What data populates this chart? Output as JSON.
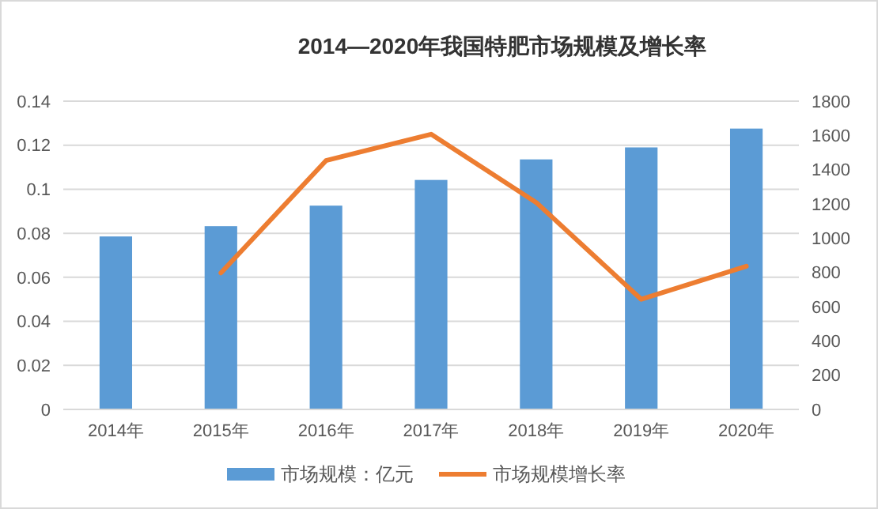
{
  "chart_data": {
    "type": "bar",
    "title": "2014—2020年我国特肥市场规模及增长率",
    "categories": [
      "2014年",
      "2015年",
      "2016年",
      "2017年",
      "2018年",
      "2019年",
      "2020年"
    ],
    "series": [
      {
        "name": "市场规模：亿元",
        "axis": "y2",
        "color": "#5b9bd5",
        "values": [
          1010,
          1070,
          1190,
          1340,
          1460,
          1530,
          1640
        ]
      },
      {
        "name": "市场规模增长率",
        "type": "line",
        "axis": "y",
        "color": "#ed7d31",
        "values": [
          null,
          0.062,
          0.113,
          0.125,
          0.094,
          0.05,
          0.065
        ]
      }
    ],
    "ylim": [
      0,
      0.14
    ],
    "yticks": [
      0,
      0.02,
      0.04,
      0.06,
      0.08,
      0.1,
      0.12,
      0.14
    ],
    "y2lim": [
      0,
      1800
    ],
    "y2ticks": [
      0,
      200,
      400,
      600,
      800,
      1000,
      1200,
      1400,
      1600,
      1800
    ],
    "grid": "y",
    "legend": "bottom",
    "marker": "none",
    "line_style": "solid"
  }
}
